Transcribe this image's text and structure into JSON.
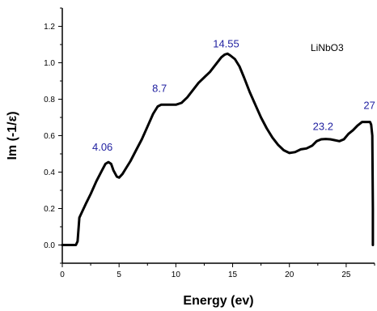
{
  "chart_data": {
    "type": "line",
    "xlabel": "Energy (ev)",
    "ylabel": "Im (-1/ε)",
    "xlim": [
      0,
      27.5
    ],
    "ylim": [
      -0.1,
      1.3
    ],
    "x_ticks": [
      0,
      5,
      10,
      15,
      20,
      25
    ],
    "y_ticks": [
      0.0,
      0.2,
      0.4,
      0.6,
      0.8,
      1.0,
      1.2
    ],
    "grid": false,
    "series": [
      {
        "name": "LiNbO3",
        "color": "#000000",
        "x": [
          0.0,
          1.2,
          1.35,
          1.5,
          1.8,
          2.1,
          2.5,
          3.0,
          3.5,
          3.8,
          4.06,
          4.3,
          4.5,
          4.8,
          5.0,
          5.3,
          5.6,
          6.0,
          6.5,
          7.0,
          7.5,
          8.0,
          8.4,
          8.7,
          9.0,
          9.5,
          10.0,
          10.5,
          11.0,
          11.5,
          12.0,
          12.5,
          13.0,
          13.5,
          14.0,
          14.3,
          14.55,
          14.8,
          15.2,
          15.6,
          16.0,
          16.5,
          17.0,
          17.5,
          18.0,
          18.5,
          19.0,
          19.5,
          20.0,
          20.5,
          21.0,
          21.5,
          22.0,
          22.4,
          22.8,
          23.2,
          23.6,
          24.0,
          24.4,
          24.8,
          25.2,
          25.6,
          26.0,
          26.4,
          26.8,
          27.1,
          27.2,
          27.3,
          27.35,
          27.35
        ],
        "values": [
          0.0,
          0.0,
          0.02,
          0.15,
          0.19,
          0.23,
          0.28,
          0.35,
          0.41,
          0.445,
          0.455,
          0.445,
          0.41,
          0.375,
          0.37,
          0.39,
          0.42,
          0.46,
          0.52,
          0.58,
          0.65,
          0.72,
          0.76,
          0.77,
          0.77,
          0.77,
          0.77,
          0.78,
          0.81,
          0.85,
          0.89,
          0.92,
          0.95,
          0.99,
          1.03,
          1.045,
          1.05,
          1.04,
          1.02,
          0.98,
          0.92,
          0.84,
          0.77,
          0.7,
          0.64,
          0.59,
          0.55,
          0.52,
          0.505,
          0.51,
          0.525,
          0.53,
          0.545,
          0.57,
          0.58,
          0.582,
          0.58,
          0.575,
          0.57,
          0.58,
          0.61,
          0.63,
          0.655,
          0.675,
          0.675,
          0.675,
          0.66,
          0.6,
          0.2,
          0.0
        ]
      }
    ],
    "series_label": "LiNbO3",
    "annotations": [
      {
        "text": "4.06",
        "x": 4.06,
        "y": 0.455,
        "color": "#1f1fa0"
      },
      {
        "text": "8.7",
        "x": 8.7,
        "y": 0.77,
        "color": "#1f1fa0"
      },
      {
        "text": "14.55",
        "x": 14.55,
        "y": 1.05,
        "color": "#1f1fa0"
      },
      {
        "text": "23.2",
        "x": 23.2,
        "y": 0.582,
        "color": "#1f1fa0"
      },
      {
        "text": "27",
        "x": 27.1,
        "y": 0.675,
        "color": "#1f1fa0"
      }
    ]
  }
}
